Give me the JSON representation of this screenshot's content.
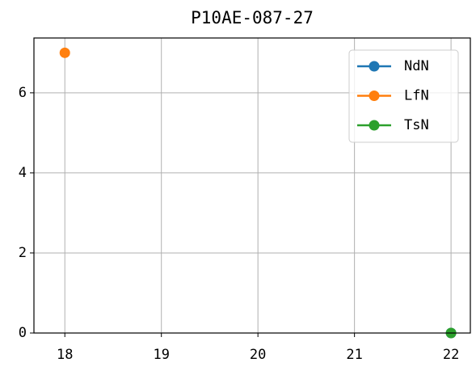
{
  "chart_data": {
    "type": "line",
    "title": "P10AE-087-27",
    "x": [
      18,
      22
    ],
    "series": [
      {
        "name": "NdN",
        "color": "#1f77b4",
        "values": [
          null,
          0
        ]
      },
      {
        "name": "LfN",
        "color": "#ff7f0e",
        "values": [
          7,
          null
        ]
      },
      {
        "name": "TsN",
        "color": "#2ca02c",
        "values": [
          null,
          0
        ]
      }
    ],
    "xlim": [
      17.68,
      22.2
    ],
    "xticks": [
      18,
      19,
      20,
      21,
      22
    ],
    "ylim": [
      0,
      7.37
    ],
    "yticks": [
      0,
      2,
      4,
      6
    ],
    "grid": true,
    "legend": "upper right"
  }
}
